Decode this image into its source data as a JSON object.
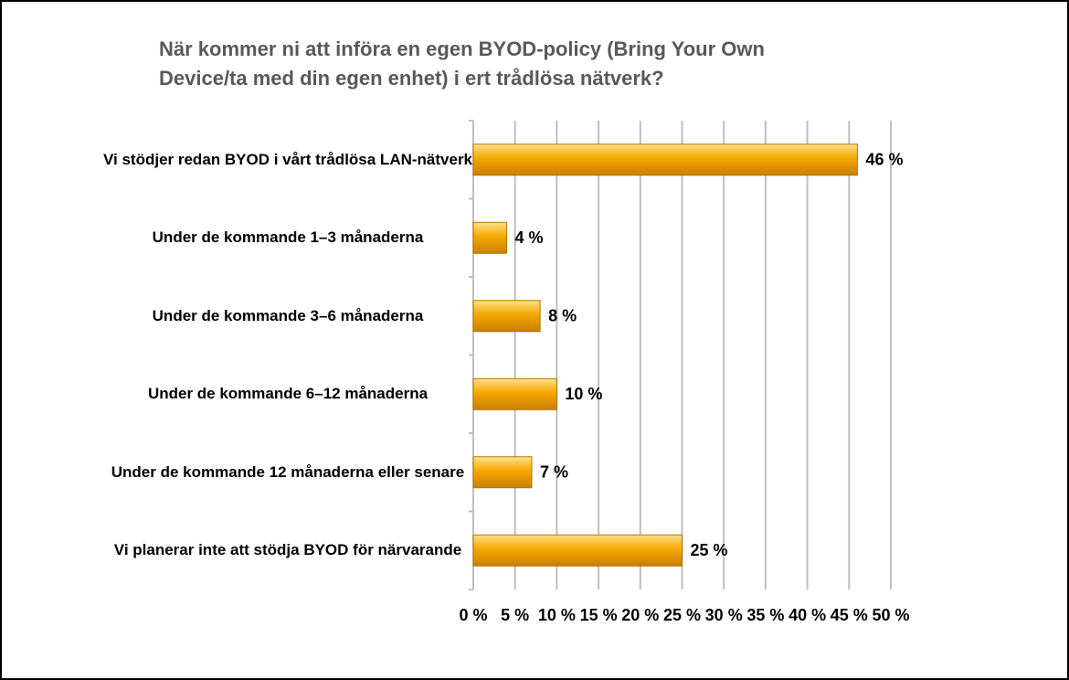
{
  "chart_data": {
    "type": "bar",
    "orientation": "horizontal",
    "title": "När kommer ni att införa en egen BYOD-policy (Bring Your Own Device/ta med din egen enhet) i ert trådlösa nätverk?",
    "categories": [
      "Vi stödjer redan BYOD i vårt trådlösa LAN-nätverk",
      "Under de kommande 1–3 månaderna",
      "Under de kommande 3–6 månaderna",
      "Under de kommande 6–12 månaderna",
      "Under de kommande 12 månaderna eller senare",
      "Vi planerar inte att stödja BYOD för närvarande"
    ],
    "values": [
      46,
      4,
      8,
      10,
      7,
      25
    ],
    "value_labels": [
      "46 %",
      "4 %",
      "8 %",
      "10 %",
      "7 %",
      "25 %"
    ],
    "color": "#f5a800",
    "xlim": [
      0,
      50
    ],
    "xticks": [
      {
        "value": 0,
        "label": "0 %"
      },
      {
        "value": 5,
        "label": "5 %"
      },
      {
        "value": 10,
        "label": "10 %"
      },
      {
        "value": 15,
        "label": "15 %"
      },
      {
        "value": 20,
        "label": "20 %"
      },
      {
        "value": 25,
        "label": "25 %"
      },
      {
        "value": 30,
        "label": "30 %"
      },
      {
        "value": 35,
        "label": "35 %"
      },
      {
        "value": 40,
        "label": "40 %"
      },
      {
        "value": 45,
        "label": "45 %"
      },
      {
        "value": 50,
        "label": "50 %"
      }
    ],
    "grid": true
  }
}
